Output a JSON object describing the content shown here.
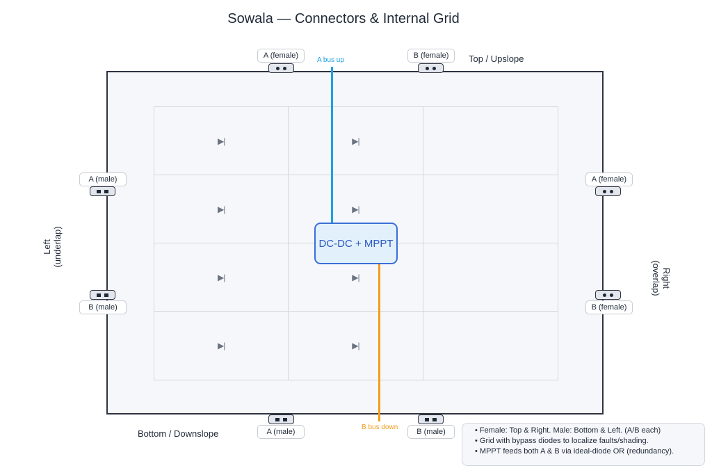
{
  "title": "Sowala — Connectors & Internal Grid",
  "sides": {
    "top": "Top / Upslope",
    "bottom": "Bottom / Downslope",
    "left": "Left (underlap)",
    "right": "Right (overlap)"
  },
  "connectors": {
    "top_a": "A (female)",
    "top_b": "B (female)",
    "left_a": "A (male)",
    "left_b": "B (male)",
    "right_a": "A (female)",
    "right_b": "B (female)",
    "bottom_a": "A (male)",
    "bottom_b": "B (male)"
  },
  "grid": {
    "rows": 4,
    "cols": 3,
    "diode_symbol": "▶|"
  },
  "buses": {
    "a_label": "A bus up",
    "b_label": "B bus down",
    "a_color": "#1ba1e2",
    "b_color": "#f39c1b"
  },
  "mppt_label": "DC-DC + MPPT",
  "notes": [
    "• Female: Top & Right. Male: Bottom & Left. (A/B each)",
    "• Grid with bypass diodes to localize faults/shading.",
    "• MPPT feeds both A & B via ideal-diode OR (redundancy)."
  ]
}
